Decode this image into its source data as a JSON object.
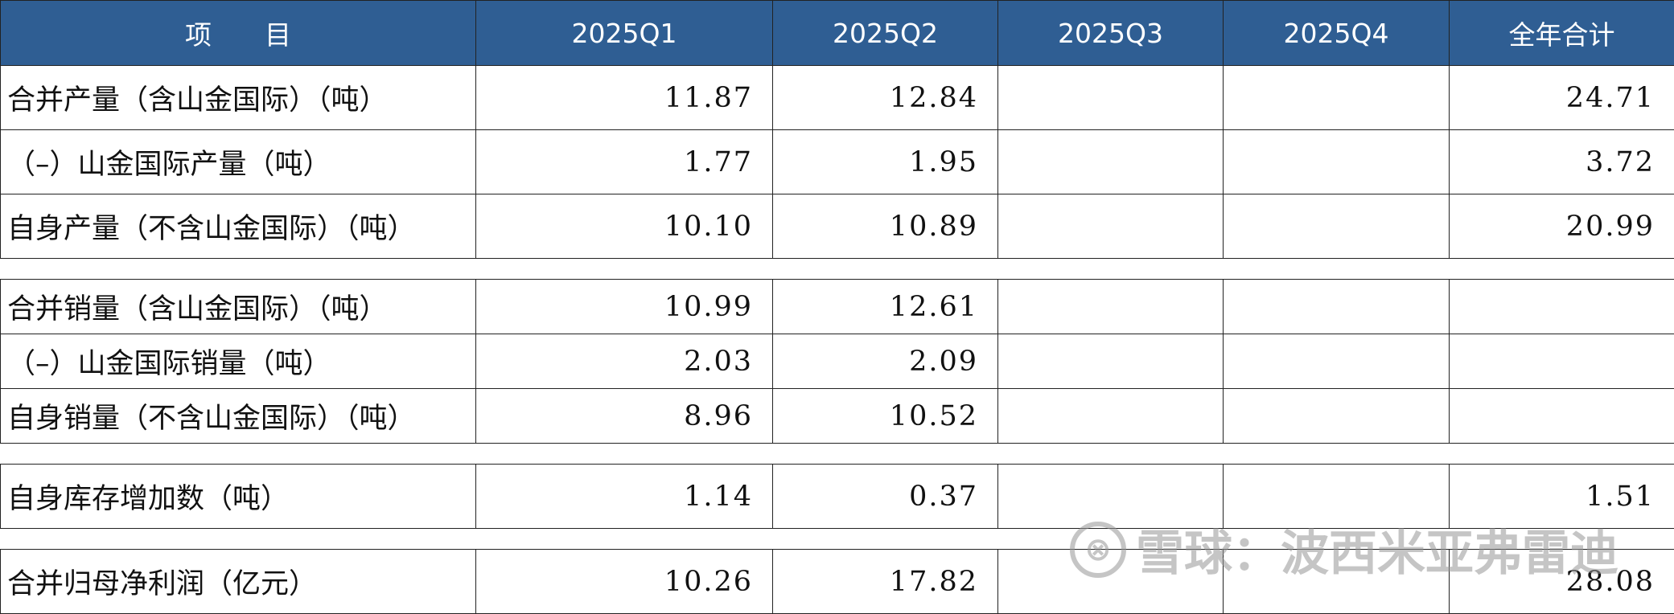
{
  "table": {
    "headers": [
      "项　　目",
      "2025Q1",
      "2025Q2",
      "2025Q3",
      "2025Q4",
      "全年合计"
    ],
    "group1": [
      {
        "label": "合并产量（含山金国际）（吨）",
        "q1": "11.87",
        "q2": "12.84",
        "q3": "",
        "q4": "",
        "total": "24.71"
      },
      {
        "label": "（–）山金国际产量（吨）",
        "q1": "1.77",
        "q2": "1.95",
        "q3": "",
        "q4": "",
        "total": "3.72"
      },
      {
        "label": "自身产量（不含山金国际）（吨）",
        "q1": "10.10",
        "q2": "10.89",
        "q3": "",
        "q4": "",
        "total": "20.99"
      }
    ],
    "group2": [
      {
        "label": "合并销量（含山金国际）（吨）",
        "q1": "10.99",
        "q2": "12.61",
        "q3": "",
        "q4": "",
        "total": ""
      },
      {
        "label": "（–）山金国际销量（吨）",
        "q1": "2.03",
        "q2": "2.09",
        "q3": "",
        "q4": "",
        "total": ""
      },
      {
        "label": "自身销量（不含山金国际）（吨）",
        "q1": "8.96",
        "q2": "10.52",
        "q3": "",
        "q4": "",
        "total": ""
      }
    ],
    "group3": [
      {
        "label": "自身库存增加数（吨）",
        "q1": "1.14",
        "q2": "0.37",
        "q3": "",
        "q4": "",
        "total": "1.51"
      }
    ],
    "group4": [
      {
        "label": "合并归母净利润（亿元）",
        "q1": "10.26",
        "q2": "17.82",
        "q3": "",
        "q4": "",
        "total": "28.08"
      }
    ]
  },
  "watermark": {
    "logo": "⊗",
    "text": "雪球：波西米亚弗雷迪"
  },
  "colors": {
    "header_bg": "#2f5e93",
    "header_text": "#ffffff"
  }
}
